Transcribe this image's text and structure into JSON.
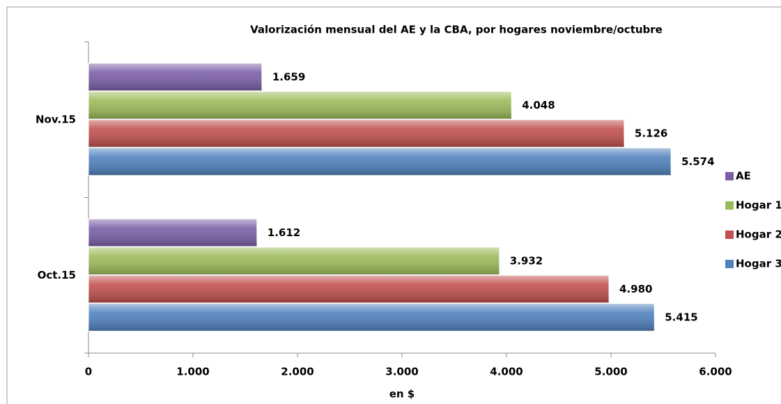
{
  "chart_data": {
    "type": "bar",
    "orientation": "horizontal",
    "title": "Valorización mensual del AE y la CBA, por hogares noviembre/octubre",
    "x_label": "en $",
    "categories": [
      "Nov.15",
      "Oct.15"
    ],
    "series": [
      {
        "name": "AE",
        "color": "#7b5ea7",
        "values": [
          1659,
          1612
        ],
        "value_labels": [
          "1.659",
          "1.612"
        ]
      },
      {
        "name": "Hogar 1",
        "color": "#9bbb59",
        "values": [
          4048,
          3932
        ],
        "value_labels": [
          "4.048",
          "3.932"
        ]
      },
      {
        "name": "Hogar 2",
        "color": "#c0504d",
        "values": [
          5126,
          4980
        ],
        "value_labels": [
          "5.126",
          "4.980"
        ]
      },
      {
        "name": "Hogar 3",
        "color": "#4f81bd",
        "values": [
          5574,
          5415
        ],
        "value_labels": [
          "5.574",
          "5.415"
        ]
      }
    ],
    "xlim": [
      0,
      6000
    ],
    "xticks": [
      0,
      {
        "value": 1000,
        "label": "1.000"
      },
      {
        "value": 2000,
        "label": "2.000"
      },
      {
        "value": 3000,
        "label": "3.000"
      },
      {
        "value": 4000,
        "label": "4.000"
      },
      {
        "value": 5000,
        "label": "5.000"
      },
      {
        "value": 6000,
        "label": "6.000"
      }
    ],
    "legend": "right"
  }
}
